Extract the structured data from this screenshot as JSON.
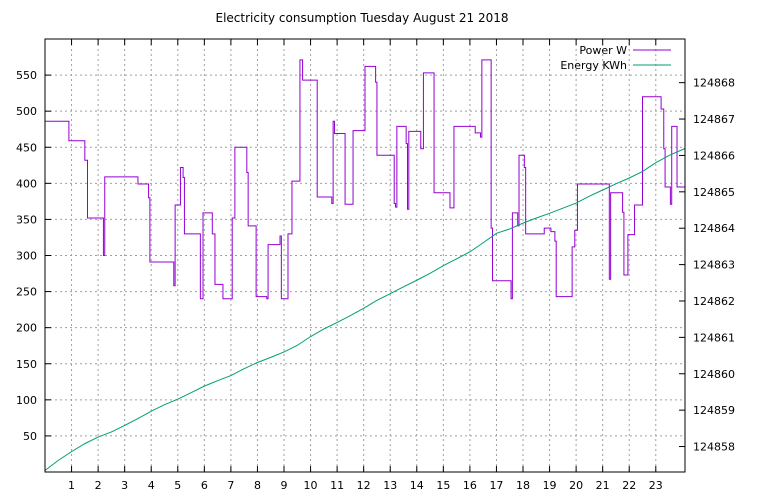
{
  "chart_data": {
    "type": "line",
    "title": "Electricity consumption Tuesday August 21 2018",
    "xlabel": "",
    "ylabel": "",
    "y2label": "",
    "grid": true,
    "legend_position": "top-right",
    "x_ticks": [
      "1",
      "2",
      "3",
      "4",
      "5",
      "6",
      "7",
      "8",
      "9",
      "10",
      "11",
      "12",
      "13",
      "14",
      "15",
      "16",
      "17",
      "18",
      "19",
      "20",
      "21",
      "22",
      "23"
    ],
    "y_ticks": [
      50,
      100,
      150,
      200,
      250,
      300,
      350,
      400,
      450,
      500,
      550
    ],
    "y2_ticks": [
      124858,
      124859,
      124860,
      124861,
      124862,
      124863,
      124864,
      124865,
      124866,
      124867,
      124868
    ],
    "xlim": [
      0,
      24.1
    ],
    "ylim": [
      0,
      600
    ],
    "y2lim": [
      124857.3,
      124869.2
    ],
    "series": [
      {
        "name": "Power W",
        "axis": "y",
        "color": "#9400d3",
        "style": "step",
        "points": [
          [
            0,
            486
          ],
          [
            0.9,
            486
          ],
          [
            0.9,
            459
          ],
          [
            1.5,
            459
          ],
          [
            1.5,
            432
          ],
          [
            1.6,
            432
          ],
          [
            1.6,
            352
          ],
          [
            2.2,
            352
          ],
          [
            2.2,
            300
          ],
          [
            2.25,
            300
          ],
          [
            2.25,
            409
          ],
          [
            3.5,
            409
          ],
          [
            3.5,
            399
          ],
          [
            3.9,
            399
          ],
          [
            3.9,
            380
          ],
          [
            3.95,
            380
          ],
          [
            3.95,
            291
          ],
          [
            4.85,
            291
          ],
          [
            4.85,
            258
          ],
          [
            4.9,
            258
          ],
          [
            4.9,
            370
          ],
          [
            5.1,
            370
          ],
          [
            5.1,
            422
          ],
          [
            5.2,
            422
          ],
          [
            5.2,
            408
          ],
          [
            5.25,
            408
          ],
          [
            5.25,
            330
          ],
          [
            5.85,
            330
          ],
          [
            5.85,
            240
          ],
          [
            5.95,
            240
          ],
          [
            5.95,
            359
          ],
          [
            6.3,
            359
          ],
          [
            6.3,
            330
          ],
          [
            6.4,
            330
          ],
          [
            6.4,
            260
          ],
          [
            6.7,
            260
          ],
          [
            6.7,
            240
          ],
          [
            7.05,
            240
          ],
          [
            7.05,
            352
          ],
          [
            7.15,
            352
          ],
          [
            7.15,
            450
          ],
          [
            7.6,
            450
          ],
          [
            7.6,
            415
          ],
          [
            7.65,
            415
          ],
          [
            7.65,
            341
          ],
          [
            7.95,
            341
          ],
          [
            7.95,
            243
          ],
          [
            8.35,
            243
          ],
          [
            8.35,
            240
          ],
          [
            8.4,
            240
          ],
          [
            8.4,
            315
          ],
          [
            8.85,
            315
          ],
          [
            8.85,
            327
          ],
          [
            8.9,
            327
          ],
          [
            8.9,
            240
          ],
          [
            9.15,
            240
          ],
          [
            9.15,
            330
          ],
          [
            9.3,
            330
          ],
          [
            9.3,
            403
          ],
          [
            9.6,
            403
          ],
          [
            9.6,
            571
          ],
          [
            9.7,
            571
          ],
          [
            9.7,
            543
          ],
          [
            10.25,
            543
          ],
          [
            10.25,
            381
          ],
          [
            10.8,
            381
          ],
          [
            10.8,
            372
          ],
          [
            10.85,
            372
          ],
          [
            10.85,
            486
          ],
          [
            10.9,
            486
          ],
          [
            10.9,
            469
          ],
          [
            11.3,
            469
          ],
          [
            11.3,
            371
          ],
          [
            11.6,
            371
          ],
          [
            11.6,
            473
          ],
          [
            12.05,
            473
          ],
          [
            12.05,
            562
          ],
          [
            12.45,
            562
          ],
          [
            12.45,
            540
          ],
          [
            12.5,
            540
          ],
          [
            12.5,
            439
          ],
          [
            13.15,
            439
          ],
          [
            13.15,
            372
          ],
          [
            13.2,
            372
          ],
          [
            13.2,
            367
          ],
          [
            13.25,
            367
          ],
          [
            13.25,
            479
          ],
          [
            13.6,
            479
          ],
          [
            13.6,
            455
          ],
          [
            13.65,
            455
          ],
          [
            13.65,
            364
          ],
          [
            13.7,
            364
          ],
          [
            13.7,
            472
          ],
          [
            14.15,
            472
          ],
          [
            14.15,
            448
          ],
          [
            14.25,
            448
          ],
          [
            14.25,
            553
          ],
          [
            14.65,
            553
          ],
          [
            14.65,
            387
          ],
          [
            15.25,
            387
          ],
          [
            15.25,
            366
          ],
          [
            15.4,
            366
          ],
          [
            15.4,
            479
          ],
          [
            16.2,
            479
          ],
          [
            16.2,
            470
          ],
          [
            16.4,
            470
          ],
          [
            16.4,
            464
          ],
          [
            16.45,
            464
          ],
          [
            16.45,
            571
          ],
          [
            16.8,
            571
          ],
          [
            16.8,
            338
          ],
          [
            16.85,
            338
          ],
          [
            16.85,
            265
          ],
          [
            17.55,
            265
          ],
          [
            17.55,
            240
          ],
          [
            17.6,
            240
          ],
          [
            17.6,
            359
          ],
          [
            17.8,
            359
          ],
          [
            17.8,
            341
          ],
          [
            17.85,
            341
          ],
          [
            17.85,
            439
          ],
          [
            18.05,
            439
          ],
          [
            18.05,
            422
          ],
          [
            18.1,
            422
          ],
          [
            18.1,
            330
          ],
          [
            18.8,
            330
          ],
          [
            18.8,
            338
          ],
          [
            19.05,
            338
          ],
          [
            19.05,
            333
          ],
          [
            19.2,
            333
          ],
          [
            19.2,
            320
          ],
          [
            19.25,
            320
          ],
          [
            19.25,
            243
          ],
          [
            19.85,
            243
          ],
          [
            19.85,
            312
          ],
          [
            19.95,
            312
          ],
          [
            19.95,
            335
          ],
          [
            20.05,
            335
          ],
          [
            20.05,
            399
          ],
          [
            21.25,
            399
          ],
          [
            21.25,
            267
          ],
          [
            21.3,
            267
          ],
          [
            21.3,
            387
          ],
          [
            21.75,
            387
          ],
          [
            21.75,
            360
          ],
          [
            21.8,
            360
          ],
          [
            21.8,
            273
          ],
          [
            21.95,
            273
          ],
          [
            21.95,
            329
          ],
          [
            22.2,
            329
          ],
          [
            22.2,
            370
          ],
          [
            22.5,
            370
          ],
          [
            22.5,
            520
          ],
          [
            23.2,
            520
          ],
          [
            23.2,
            503
          ],
          [
            23.3,
            503
          ],
          [
            23.3,
            448
          ],
          [
            23.35,
            448
          ],
          [
            23.35,
            395
          ],
          [
            23.55,
            395
          ],
          [
            23.55,
            371
          ],
          [
            23.6,
            371
          ],
          [
            23.6,
            479
          ],
          [
            23.8,
            479
          ],
          [
            23.8,
            395
          ],
          [
            24.1,
            395
          ]
        ]
      },
      {
        "name": "Energy KWh",
        "axis": "y2",
        "color": "#009e73",
        "style": "line",
        "points": [
          [
            0,
            124857.34
          ],
          [
            0.5,
            124857.62
          ],
          [
            1,
            124857.86
          ],
          [
            1.5,
            124858.08
          ],
          [
            2,
            124858.26
          ],
          [
            2.5,
            124858.4
          ],
          [
            3,
            124858.58
          ],
          [
            3.5,
            124858.77
          ],
          [
            4,
            124858.97
          ],
          [
            4.5,
            124859.15
          ],
          [
            5,
            124859.3
          ],
          [
            5.5,
            124859.48
          ],
          [
            6,
            124859.66
          ],
          [
            6.5,
            124859.81
          ],
          [
            7,
            124859.95
          ],
          [
            7.5,
            124860.14
          ],
          [
            8,
            124860.31
          ],
          [
            8.5,
            124860.45
          ],
          [
            9,
            124860.6
          ],
          [
            9.5,
            124860.78
          ],
          [
            10,
            124861.02
          ],
          [
            10.5,
            124861.23
          ],
          [
            11,
            124861.41
          ],
          [
            11.5,
            124861.6
          ],
          [
            12,
            124861.8
          ],
          [
            12.5,
            124862.02
          ],
          [
            13,
            124862.2
          ],
          [
            13.5,
            124862.39
          ],
          [
            14,
            124862.57
          ],
          [
            14.5,
            124862.76
          ],
          [
            15,
            124862.97
          ],
          [
            15.5,
            124863.16
          ],
          [
            16,
            124863.35
          ],
          [
            16.5,
            124863.6
          ],
          [
            17,
            124863.86
          ],
          [
            17.5,
            124863.98
          ],
          [
            18,
            124864.14
          ],
          [
            18.5,
            124864.28
          ],
          [
            19,
            124864.41
          ],
          [
            19.5,
            124864.55
          ],
          [
            20,
            124864.69
          ],
          [
            20.5,
            124864.88
          ],
          [
            21,
            124865.05
          ],
          [
            21.5,
            124865.22
          ],
          [
            22,
            124865.38
          ],
          [
            22.5,
            124865.56
          ],
          [
            23,
            124865.8
          ],
          [
            23.5,
            124866.0
          ],
          [
            24.1,
            124866.19
          ]
        ]
      }
    ]
  }
}
